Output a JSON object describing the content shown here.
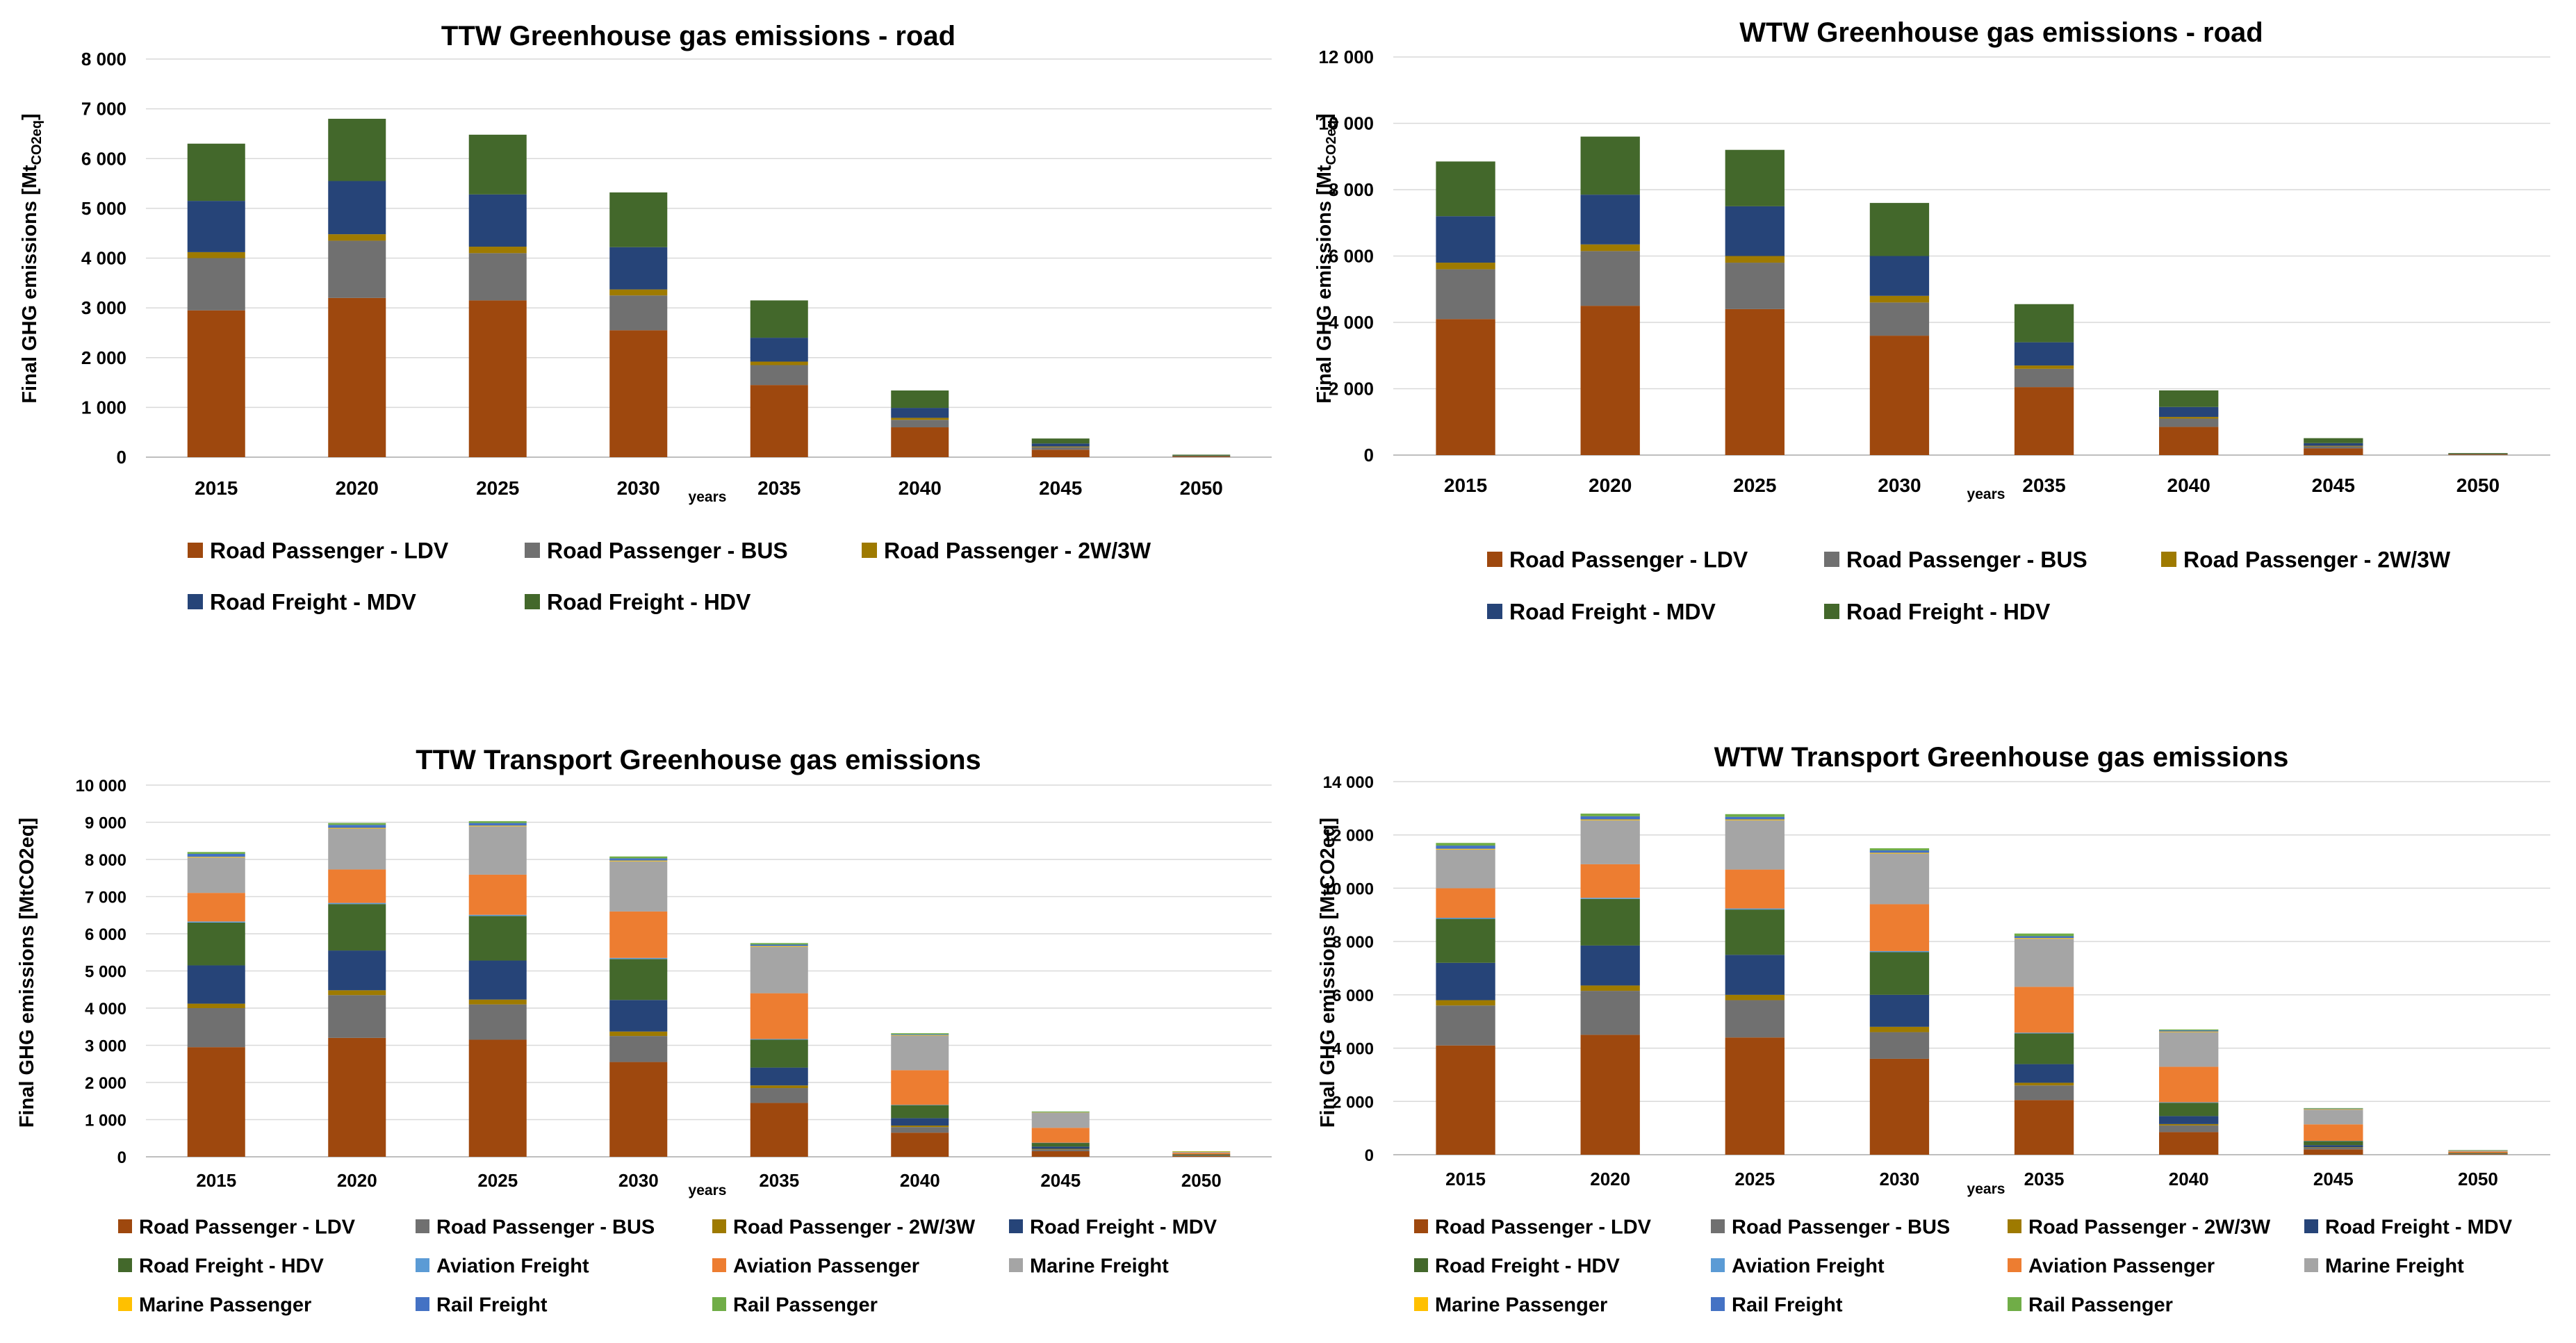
{
  "colors": {
    "Road Passenger - LDV": "#9e480e",
    "Road Passenger - BUS": "#707070",
    "Road Passenger - 2W/3W": "#9e7a00",
    "Road Freight - MDV": "#264478",
    "Road Freight - HDV": "#43682b",
    "Aviation Freight": "#5b9bd5",
    "Aviation Passenger": "#ed7d31",
    "Marine Freight": "#a5a5a5",
    "Marine Passenger": "#ffc000",
    "Rail Freight": "#4472c4",
    "Rail Passenger": "#70ad47",
    "grid": "#d9d9d9",
    "axis": "#bfbfbf",
    "text": "#000000"
  },
  "chart_data": [
    {
      "type": "bar",
      "stacked": true,
      "title": "TTW Greenhouse gas emissions - road",
      "ylabel_main": "Final GHG emissions [Mt",
      "ylabel_sub": "CO2eq",
      "ylabel_end": "]",
      "xlabel": "years",
      "ylim": [
        0,
        8000
      ],
      "yticks": [
        0,
        1000,
        2000,
        3000,
        4000,
        5000,
        6000,
        7000,
        8000
      ],
      "ytick_labels": [
        "0",
        "1 000",
        "2 000",
        "3 000",
        "4 000",
        "5 000",
        "6 000",
        "7 000",
        "8 000"
      ],
      "categories": [
        "2015",
        "2020",
        "2025",
        "2030",
        "2035",
        "2040",
        "2045",
        "2050"
      ],
      "series": [
        {
          "name": "Road Passenger - LDV",
          "values": [
            2950,
            3200,
            3150,
            2550,
            1450,
            600,
            150,
            15
          ]
        },
        {
          "name": "Road Passenger - BUS",
          "values": [
            1050,
            1150,
            950,
            700,
            400,
            150,
            50,
            5
          ]
        },
        {
          "name": "Road Passenger - 2W/3W",
          "values": [
            120,
            130,
            130,
            120,
            70,
            40,
            15,
            5
          ]
        },
        {
          "name": "Road Freight - MDV",
          "values": [
            1030,
            1070,
            1050,
            850,
            480,
            200,
            60,
            5
          ]
        },
        {
          "name": "Road Freight - HDV",
          "values": [
            1150,
            1250,
            1200,
            1100,
            750,
            350,
            100,
            20
          ]
        }
      ],
      "legend": [
        [
          "Road Passenger - LDV",
          "Road Passenger - BUS",
          "Road Passenger - 2W/3W"
        ],
        [
          "Road Freight - MDV",
          "Road Freight - HDV"
        ]
      ]
    },
    {
      "type": "bar",
      "stacked": true,
      "title": "WTW Greenhouse gas emissions - road",
      "ylabel_main": "Final GHG emissions [Mt",
      "ylabel_sub": "CO2eq",
      "ylabel_end": "]",
      "xlabel": "years",
      "ylim": [
        0,
        12000
      ],
      "yticks": [
        0,
        2000,
        4000,
        6000,
        8000,
        10000,
        12000
      ],
      "ytick_labels": [
        "0",
        "2 000",
        "4 000",
        "6 000",
        "8 000",
        "10 000",
        "12 000"
      ],
      "categories": [
        "2015",
        "2020",
        "2025",
        "2030",
        "2035",
        "2040",
        "2045",
        "2050"
      ],
      "series": [
        {
          "name": "Road Passenger - LDV",
          "values": [
            4100,
            4500,
            4400,
            3600,
            2050,
            850,
            200,
            20
          ]
        },
        {
          "name": "Road Passenger - BUS",
          "values": [
            1500,
            1650,
            1400,
            1000,
            550,
            250,
            60,
            5
          ]
        },
        {
          "name": "Road Passenger - 2W/3W",
          "values": [
            200,
            200,
            200,
            200,
            100,
            50,
            20,
            5
          ]
        },
        {
          "name": "Road Freight - MDV",
          "values": [
            1400,
            1500,
            1500,
            1200,
            700,
            300,
            80,
            10
          ]
        },
        {
          "name": "Road Freight - HDV",
          "values": [
            1650,
            1750,
            1700,
            1600,
            1150,
            500,
            150,
            20
          ]
        }
      ],
      "legend": [
        [
          "Road Passenger - LDV",
          "Road Passenger - BUS",
          "Road Passenger - 2W/3W"
        ],
        [
          "Road Freight - MDV",
          "Road Freight - HDV"
        ]
      ]
    },
    {
      "type": "bar",
      "stacked": true,
      "title": "TTW Transport Greenhouse gas emissions",
      "ylabel_main": "Final GHG emissions [MtCO2eq]",
      "ylabel_sub": "",
      "ylabel_end": "",
      "xlabel": "years",
      "ylim": [
        0,
        10000
      ],
      "yticks": [
        0,
        1000,
        2000,
        3000,
        4000,
        5000,
        6000,
        7000,
        8000,
        9000,
        10000
      ],
      "ytick_labels": [
        "0",
        "1 000",
        "2 000",
        "3 000",
        "4 000",
        "5 000",
        "6 000",
        "7 000",
        "8 000",
        "9 000",
        "10 000"
      ],
      "categories": [
        "2015",
        "2020",
        "2025",
        "2030",
        "2035",
        "2040",
        "2045",
        "2050"
      ],
      "series": [
        {
          "name": "Road Passenger - LDV",
          "values": [
            2950,
            3200,
            3150,
            2550,
            1450,
            650,
            150,
            20
          ]
        },
        {
          "name": "Road Passenger - BUS",
          "values": [
            1050,
            1150,
            950,
            700,
            400,
            150,
            50,
            10
          ]
        },
        {
          "name": "Road Passenger - 2W/3W",
          "values": [
            120,
            130,
            130,
            120,
            70,
            40,
            15,
            5
          ]
        },
        {
          "name": "Road Freight - MDV",
          "values": [
            1030,
            1070,
            1050,
            850,
            480,
            200,
            60,
            10
          ]
        },
        {
          "name": "Road Freight - HDV",
          "values": [
            1150,
            1250,
            1200,
            1100,
            750,
            350,
            100,
            20
          ]
        },
        {
          "name": "Aviation Freight",
          "values": [
            30,
            30,
            30,
            30,
            20,
            10,
            5,
            0
          ]
        },
        {
          "name": "Aviation Passenger",
          "values": [
            770,
            900,
            1080,
            1250,
            1230,
            930,
            400,
            40
          ]
        },
        {
          "name": "Marine Freight",
          "values": [
            950,
            1100,
            1300,
            1350,
            1250,
            930,
            400,
            30
          ]
        },
        {
          "name": "Marine Passenger",
          "values": [
            20,
            20,
            20,
            20,
            20,
            15,
            10,
            5
          ]
        },
        {
          "name": "Rail Freight",
          "values": [
            80,
            80,
            70,
            60,
            40,
            20,
            10,
            0
          ]
        },
        {
          "name": "Rail Passenger",
          "values": [
            50,
            50,
            50,
            50,
            40,
            30,
            20,
            10
          ]
        }
      ],
      "legend": [
        [
          "Road Passenger - LDV",
          "Road Passenger - BUS",
          "Road Passenger - 2W/3W",
          "Road Freight - MDV"
        ],
        [
          "Road Freight - HDV",
          "Aviation Freight",
          "Aviation Passenger",
          "Marine Freight"
        ],
        [
          "Marine Passenger",
          "Rail Freight",
          "Rail Passenger"
        ]
      ]
    },
    {
      "type": "bar",
      "stacked": true,
      "title": "WTW Transport Greenhouse gas emissions",
      "ylabel_main": "Final GHG emissions [MtCO2eq]",
      "ylabel_sub": "",
      "ylabel_end": "",
      "xlabel": "years",
      "ylim": [
        0,
        14000
      ],
      "yticks": [
        0,
        2000,
        4000,
        6000,
        8000,
        10000,
        12000,
        14000
      ],
      "ytick_labels": [
        "0",
        "2 000",
        "4 000",
        "6 000",
        "8 000",
        "10 000",
        "12 000",
        "14 000"
      ],
      "categories": [
        "2015",
        "2020",
        "2025",
        "2030",
        "2035",
        "2040",
        "2045",
        "2050"
      ],
      "series": [
        {
          "name": "Road Passenger - LDV",
          "values": [
            4100,
            4500,
            4400,
            3600,
            2050,
            850,
            200,
            20
          ]
        },
        {
          "name": "Road Passenger - BUS",
          "values": [
            1500,
            1650,
            1400,
            1000,
            550,
            250,
            60,
            10
          ]
        },
        {
          "name": "Road Passenger - 2W/3W",
          "values": [
            200,
            200,
            200,
            200,
            100,
            50,
            20,
            5
          ]
        },
        {
          "name": "Road Freight - MDV",
          "values": [
            1400,
            1500,
            1500,
            1200,
            700,
            300,
            80,
            10
          ]
        },
        {
          "name": "Road Freight - HDV",
          "values": [
            1650,
            1750,
            1700,
            1600,
            1150,
            500,
            150,
            20
          ]
        },
        {
          "name": "Aviation Freight",
          "values": [
            40,
            40,
            40,
            40,
            30,
            20,
            10,
            0
          ]
        },
        {
          "name": "Aviation Passenger",
          "values": [
            1110,
            1260,
            1460,
            1760,
            1720,
            1330,
            620,
            50
          ]
        },
        {
          "name": "Marine Freight",
          "values": [
            1450,
            1650,
            1850,
            1900,
            1800,
            1300,
            550,
            40
          ]
        },
        {
          "name": "Marine Passenger",
          "values": [
            30,
            30,
            30,
            30,
            30,
            25,
            20,
            5
          ]
        },
        {
          "name": "Rail Freight",
          "values": [
            120,
            120,
            100,
            90,
            70,
            40,
            20,
            5
          ]
        },
        {
          "name": "Rail Passenger",
          "values": [
            100,
            100,
            100,
            80,
            100,
            35,
            20,
            10
          ]
        }
      ],
      "legend": [
        [
          "Road Passenger - LDV",
          "Road Passenger - BUS",
          "Road Passenger - 2W/3W",
          "Road Freight - MDV"
        ],
        [
          "Road Freight - HDV",
          "Aviation Freight",
          "Aviation Passenger",
          "Marine Freight"
        ],
        [
          "Marine Passenger",
          "Rail Freight",
          "Rail Passenger"
        ]
      ]
    }
  ]
}
